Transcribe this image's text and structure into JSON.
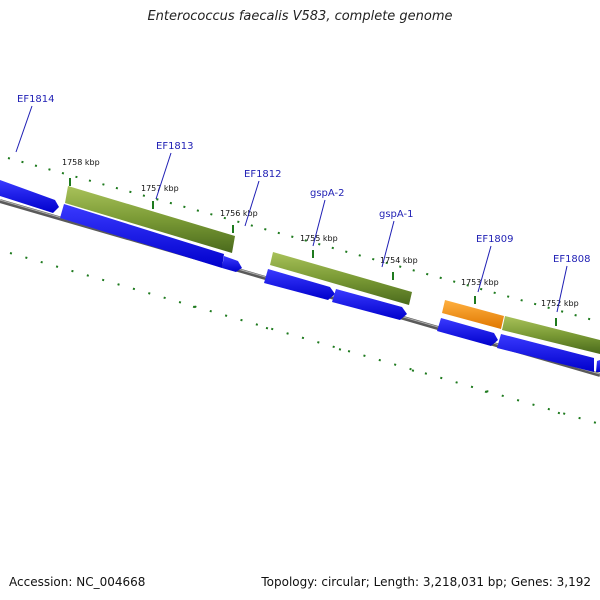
{
  "header": {
    "title": "Enterococcus faecalis V583, complete genome"
  },
  "footer": {
    "accession": "Accession: NC_004668",
    "summary": "Topology: circular; Length: 3,218,031 bp; Genes: 3,192"
  },
  "colors": {
    "cds": "#0a0ae6",
    "gene": "#6f8f2e",
    "rna": "#f08c10",
    "backbone": "#7a7a7a",
    "gc_skew": "#1e7a1e",
    "label": "#1f1fb4"
  },
  "ticks": [
    {
      "label": "1758 kbp"
    },
    {
      "label": "1757 kbp"
    },
    {
      "label": "1756 kbp"
    },
    {
      "label": "1755 kbp"
    },
    {
      "label": "1754 kbp"
    },
    {
      "label": "1753 kbp"
    },
    {
      "label": "1752 kbp"
    }
  ],
  "gene_labels": [
    {
      "name": "EF1814"
    },
    {
      "name": "EF1813"
    },
    {
      "name": "EF1812"
    },
    {
      "name": "gspA-2"
    },
    {
      "name": "gspA-1"
    },
    {
      "name": "EF1809"
    },
    {
      "name": "EF1808"
    }
  ]
}
